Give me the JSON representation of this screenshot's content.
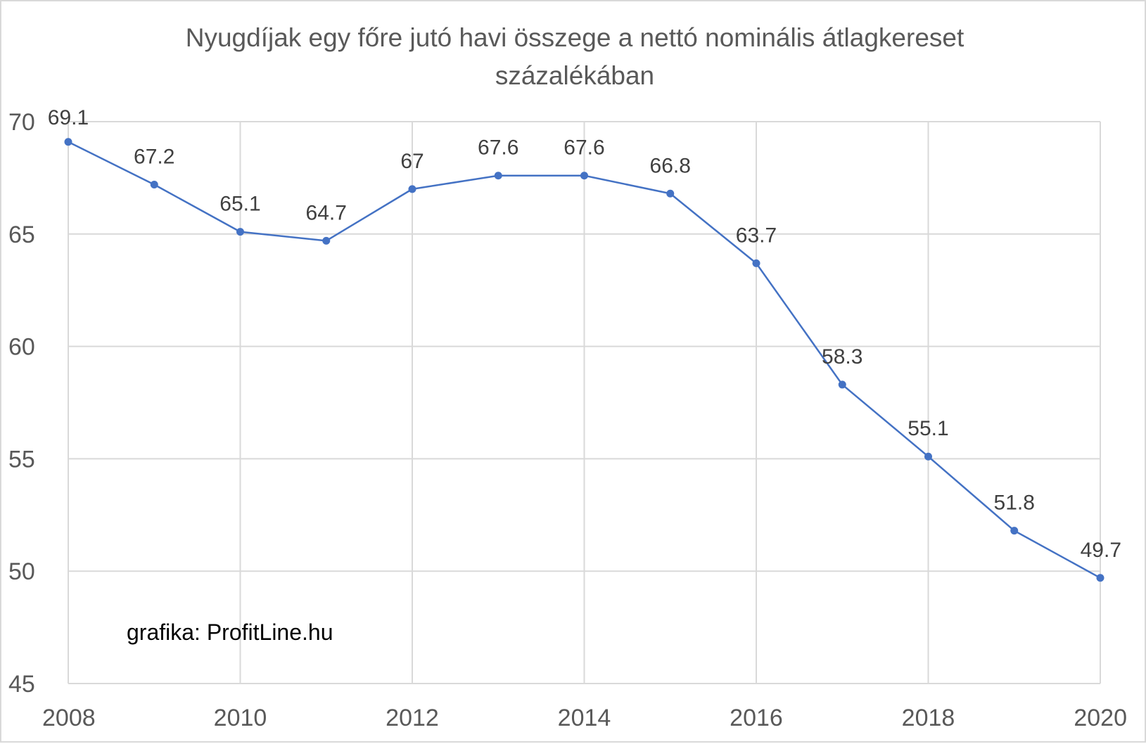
{
  "chart_data": {
    "type": "line",
    "title": "Nyugdíjak egy főre jutó havi összege a nettó nominális átlagkereset százalékában",
    "title_lines": [
      "Nyugdíjak egy főre jutó havi összege a nettó nominális átlagkereset",
      "százalékában"
    ],
    "x": [
      2008,
      2009,
      2010,
      2011,
      2012,
      2013,
      2014,
      2015,
      2016,
      2017,
      2018,
      2019,
      2020
    ],
    "series": [
      {
        "values": [
          69.1,
          67.2,
          65.1,
          64.7,
          67,
          67.6,
          67.6,
          66.8,
          63.7,
          58.3,
          55.1,
          51.8,
          49.7
        ],
        "labels": [
          "69.1",
          "67.2",
          "65.1",
          "64.7",
          "67",
          "67.6",
          "67.6",
          "66.8",
          "63.7",
          "58.3",
          "55.1",
          "51.8",
          "49.7"
        ],
        "color": "#4472c4"
      }
    ],
    "x_tick_labels": [
      "2008",
      "2010",
      "2012",
      "2014",
      "2016",
      "2018",
      "2020"
    ],
    "y_tick_labels": [
      "45",
      "50",
      "55",
      "60",
      "65",
      "70"
    ],
    "xlim": [
      2008,
      2020
    ],
    "ylim": [
      45,
      70
    ],
    "xlabel": "",
    "ylabel": "",
    "grid": true,
    "legend": "none",
    "annotation": "grafika: ProfitLine.hu",
    "colors": {
      "line": "#4472c4",
      "grid": "#d9d9d9",
      "text": "#595959"
    }
  }
}
